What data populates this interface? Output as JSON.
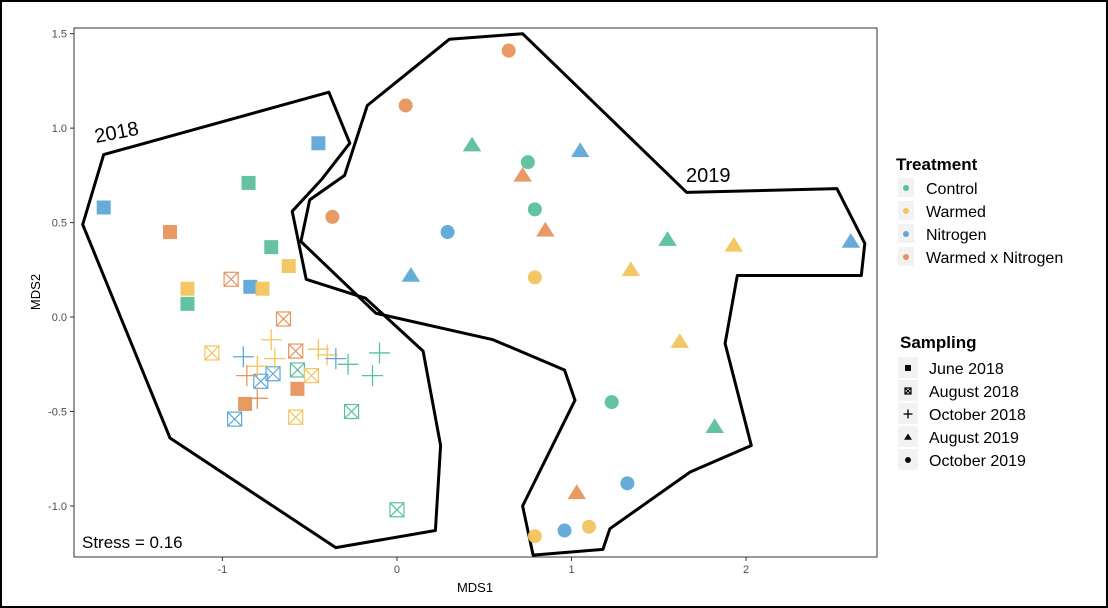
{
  "chart_data": {
    "type": "scatter",
    "xlabel": "MDS1",
    "ylabel": "MDS2",
    "xlim": [
      -1.85,
      2.75
    ],
    "ylim": [
      -1.27,
      1.53
    ],
    "xticks": [
      -1,
      0,
      1,
      2
    ],
    "xtick_labels": [
      "-1",
      "0",
      "1",
      "2"
    ],
    "yticks": [
      -1.0,
      -0.5,
      0.0,
      0.5,
      1.0,
      1.5
    ],
    "ytick_labels": [
      "-1.0",
      "-0.5",
      "0.0",
      "0.5",
      "1.0",
      "1.5"
    ],
    "grid": false,
    "stress_label": "Stress = 0.16",
    "annotations": [
      {
        "text": "2018",
        "x": -1.55,
        "y": 0.98,
        "rotate": -11
      },
      {
        "text": "2019",
        "x": 1.68,
        "y": 0.72,
        "rotate": 0
      }
    ],
    "colors": {
      "Control": "#5bbf9a",
      "Warmed": "#f2c45e",
      "Nitrogen": "#5fa7d6",
      "Warmed x Nitrogen": "#e8935c"
    },
    "legend_treatment": {
      "title": "Treatment",
      "items": [
        "Control",
        "Warmed",
        "Nitrogen",
        "Warmed x Nitrogen"
      ]
    },
    "legend_sampling": {
      "title": "Sampling",
      "items": [
        {
          "label": "June 2018",
          "shape": "square"
        },
        {
          "label": "August 2018",
          "shape": "boxx"
        },
        {
          "label": "October 2018",
          "shape": "plus"
        },
        {
          "label": "August 2019",
          "shape": "triangle"
        },
        {
          "label": "October 2019",
          "shape": "circle"
        }
      ]
    },
    "hulls": [
      {
        "name": "2018",
        "points": [
          [
            -1.68,
            0.86
          ],
          [
            -0.39,
            1.19
          ],
          [
            -0.27,
            0.92
          ],
          [
            -0.43,
            0.73
          ],
          [
            -0.6,
            0.56
          ],
          [
            -0.52,
            0.2
          ],
          [
            -0.18,
            0.1
          ],
          [
            0.15,
            -0.18
          ],
          [
            0.25,
            -0.68
          ],
          [
            0.22,
            -1.13
          ],
          [
            -0.35,
            -1.22
          ],
          [
            -1.3,
            -0.64
          ],
          [
            -1.8,
            0.49
          ]
        ]
      },
      {
        "name": "2019",
        "points": [
          [
            -0.12,
            0.02
          ],
          [
            -0.55,
            0.4
          ],
          [
            -0.5,
            0.62
          ],
          [
            -0.3,
            0.75
          ],
          [
            -0.17,
            1.12
          ],
          [
            0.3,
            1.47
          ],
          [
            0.72,
            1.5
          ],
          [
            1.66,
            0.66
          ],
          [
            2.52,
            0.68
          ],
          [
            2.68,
            0.39
          ],
          [
            2.66,
            0.22
          ],
          [
            1.95,
            0.22
          ],
          [
            1.88,
            -0.14
          ],
          [
            2.03,
            -0.68
          ],
          [
            1.68,
            -0.82
          ],
          [
            1.22,
            -1.12
          ],
          [
            1.18,
            -1.23
          ],
          [
            0.78,
            -1.26
          ],
          [
            0.72,
            -1.0
          ],
          [
            1.02,
            -0.44
          ],
          [
            0.96,
            -0.28
          ],
          [
            0.55,
            -0.12
          ]
        ]
      }
    ],
    "series": [
      {
        "sampling": "June 2018",
        "shape": "square",
        "points": [
          {
            "x": -1.68,
            "y": 0.58,
            "t": "Nitrogen"
          },
          {
            "x": -0.45,
            "y": 0.92,
            "t": "Nitrogen"
          },
          {
            "x": -0.85,
            "y": 0.71,
            "t": "Control"
          },
          {
            "x": -1.3,
            "y": 0.45,
            "t": "Warmed x Nitrogen"
          },
          {
            "x": -0.72,
            "y": 0.37,
            "t": "Control"
          },
          {
            "x": -0.62,
            "y": 0.27,
            "t": "Warmed"
          },
          {
            "x": -1.2,
            "y": 0.15,
            "t": "Warmed"
          },
          {
            "x": -0.84,
            "y": 0.16,
            "t": "Nitrogen"
          },
          {
            "x": -0.77,
            "y": 0.15,
            "t": "Warmed"
          },
          {
            "x": -1.2,
            "y": 0.07,
            "t": "Control"
          },
          {
            "x": -0.57,
            "y": -0.38,
            "t": "Warmed x Nitrogen"
          },
          {
            "x": -0.87,
            "y": -0.46,
            "t": "Warmed x Nitrogen"
          }
        ]
      },
      {
        "sampling": "August 2018",
        "shape": "boxx",
        "points": [
          {
            "x": -0.95,
            "y": 0.2,
            "t": "Warmed x Nitrogen"
          },
          {
            "x": -0.65,
            "y": -0.01,
            "t": "Warmed x Nitrogen"
          },
          {
            "x": -1.06,
            "y": -0.19,
            "t": "Warmed"
          },
          {
            "x": -0.58,
            "y": -0.18,
            "t": "Warmed x Nitrogen"
          },
          {
            "x": -0.57,
            "y": -0.28,
            "t": "Control"
          },
          {
            "x": -0.71,
            "y": -0.3,
            "t": "Nitrogen"
          },
          {
            "x": -0.78,
            "y": -0.34,
            "t": "Nitrogen"
          },
          {
            "x": -0.49,
            "y": -0.31,
            "t": "Warmed"
          },
          {
            "x": -0.93,
            "y": -0.54,
            "t": "Nitrogen"
          },
          {
            "x": -0.58,
            "y": -0.53,
            "t": "Warmed"
          },
          {
            "x": -0.26,
            "y": -0.5,
            "t": "Control"
          },
          {
            "x": 0.0,
            "y": -1.02,
            "t": "Control"
          }
        ]
      },
      {
        "sampling": "October 2018",
        "shape": "plus",
        "points": [
          {
            "x": -0.72,
            "y": -0.12,
            "t": "Warmed"
          },
          {
            "x": -0.88,
            "y": -0.21,
            "t": "Nitrogen"
          },
          {
            "x": -0.8,
            "y": -0.26,
            "t": "Warmed"
          },
          {
            "x": -0.7,
            "y": -0.22,
            "t": "Warmed"
          },
          {
            "x": -0.86,
            "y": -0.31,
            "t": "Warmed x Nitrogen"
          },
          {
            "x": -0.45,
            "y": -0.17,
            "t": "Warmed"
          },
          {
            "x": -0.4,
            "y": -0.2,
            "t": "Warmed"
          },
          {
            "x": -0.35,
            "y": -0.22,
            "t": "Nitrogen"
          },
          {
            "x": -0.28,
            "y": -0.25,
            "t": "Control"
          },
          {
            "x": -0.1,
            "y": -0.19,
            "t": "Control"
          },
          {
            "x": -0.14,
            "y": -0.31,
            "t": "Control"
          },
          {
            "x": -0.8,
            "y": -0.43,
            "t": "Warmed x Nitrogen"
          }
        ]
      },
      {
        "sampling": "August 2019",
        "shape": "triangle",
        "points": [
          {
            "x": 0.43,
            "y": 0.91,
            "t": "Control"
          },
          {
            "x": 1.05,
            "y": 0.88,
            "t": "Nitrogen"
          },
          {
            "x": 0.72,
            "y": 0.75,
            "t": "Warmed x Nitrogen"
          },
          {
            "x": 0.85,
            "y": 0.46,
            "t": "Warmed x Nitrogen"
          },
          {
            "x": 1.55,
            "y": 0.41,
            "t": "Control"
          },
          {
            "x": 1.93,
            "y": 0.38,
            "t": "Warmed"
          },
          {
            "x": 2.6,
            "y": 0.4,
            "t": "Nitrogen"
          },
          {
            "x": 0.08,
            "y": 0.22,
            "t": "Nitrogen"
          },
          {
            "x": 1.34,
            "y": 0.25,
            "t": "Warmed"
          },
          {
            "x": 1.62,
            "y": -0.13,
            "t": "Warmed"
          },
          {
            "x": 1.82,
            "y": -0.58,
            "t": "Control"
          },
          {
            "x": 1.03,
            "y": -0.93,
            "t": "Warmed x Nitrogen"
          }
        ]
      },
      {
        "sampling": "October 2019",
        "shape": "circle",
        "points": [
          {
            "x": 0.64,
            "y": 1.41,
            "t": "Warmed x Nitrogen"
          },
          {
            "x": 0.05,
            "y": 1.12,
            "t": "Warmed x Nitrogen"
          },
          {
            "x": 0.75,
            "y": 0.82,
            "t": "Control"
          },
          {
            "x": 0.79,
            "y": 0.57,
            "t": "Control"
          },
          {
            "x": -0.37,
            "y": 0.53,
            "t": "Warmed x Nitrogen"
          },
          {
            "x": 0.29,
            "y": 0.45,
            "t": "Nitrogen"
          },
          {
            "x": 0.79,
            "y": 0.21,
            "t": "Warmed"
          },
          {
            "x": 1.23,
            "y": -0.45,
            "t": "Control"
          },
          {
            "x": 1.32,
            "y": -0.88,
            "t": "Nitrogen"
          },
          {
            "x": 0.79,
            "y": -1.16,
            "t": "Warmed"
          },
          {
            "x": 0.96,
            "y": -1.13,
            "t": "Nitrogen"
          },
          {
            "x": 1.1,
            "y": -1.11,
            "t": "Warmed"
          }
        ]
      }
    ]
  }
}
